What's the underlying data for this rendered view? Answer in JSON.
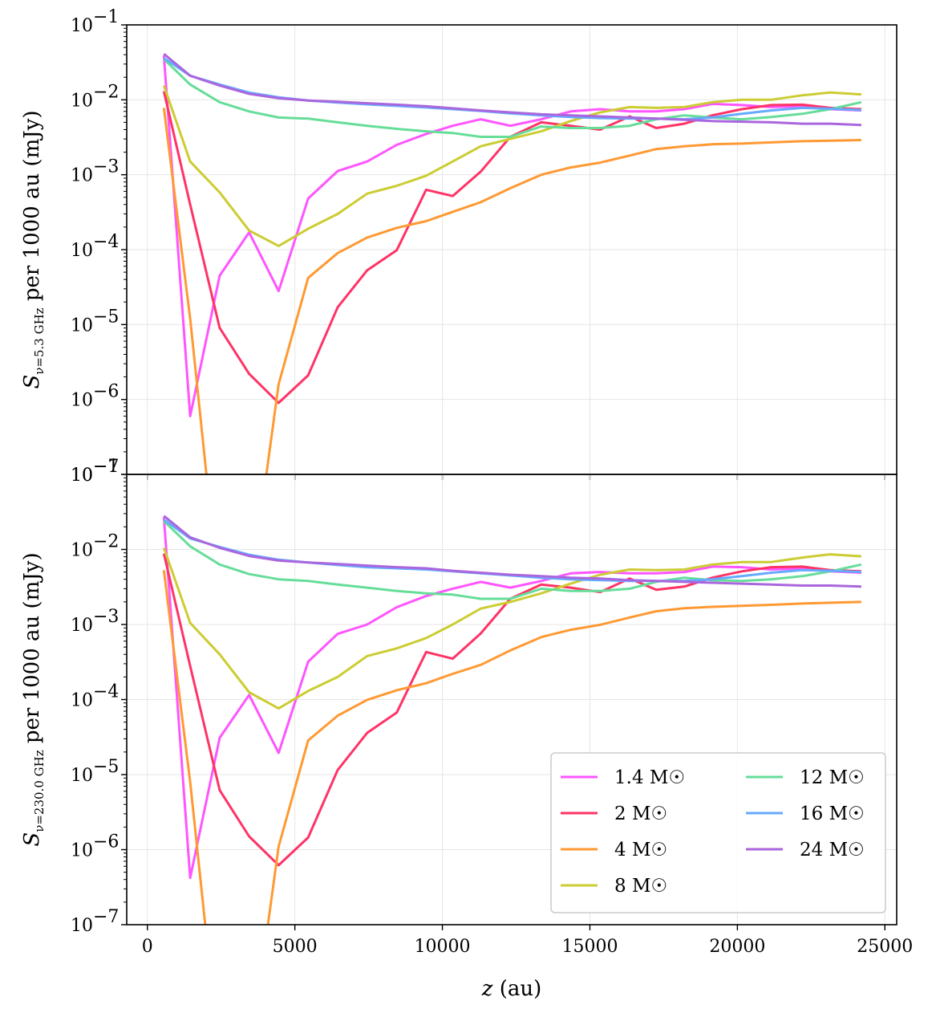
{
  "chart_data": [
    {
      "type": "line",
      "panel": "top",
      "ylabel_main": "S",
      "ylabel_sub": "ν=5.3 GHz",
      "ylabel_rest": " per 1000 au (mJy)",
      "yscale": "log",
      "ylim": [
        1e-07,
        0.1
      ],
      "xlim": [
        -700,
        25400
      ],
      "grid": true,
      "series": [
        {
          "name": "1.4 M☉",
          "color": "#ff55ff",
          "x": [
            560,
            1450,
            2450,
            3450,
            4450,
            5450,
            6450,
            7450,
            8450,
            9450,
            10350,
            11300,
            12300,
            13350,
            14350,
            15350,
            16350,
            17250,
            18200,
            19150,
            20150,
            21150,
            22200,
            23150,
            24200
          ],
          "y": [
            0.039,
            6e-07,
            4.5e-05,
            0.00017,
            2.8e-05,
            0.00048,
            0.00112,
            0.0015,
            0.0025,
            0.0035,
            0.0045,
            0.0055,
            0.0045,
            0.0055,
            0.007,
            0.0075,
            0.007,
            0.007,
            0.0075,
            0.0088,
            0.0085,
            0.008,
            0.0082,
            0.0075,
            0.0072
          ]
        },
        {
          "name": "2 M☉",
          "color": "#ff3366",
          "x": [
            560,
            1450,
            2450,
            3450,
            4450,
            5450,
            6450,
            7450,
            8450,
            9450,
            10350,
            11300,
            12300,
            13350,
            14350,
            15350,
            16350,
            17250,
            18200,
            19150,
            20150,
            21150,
            22200,
            23150,
            24200
          ],
          "y": [
            0.013,
            0.0004,
            9e-06,
            2.2e-06,
            9e-07,
            2.1e-06,
            1.7e-05,
            5.3e-05,
            9.8e-05,
            0.00063,
            0.00052,
            0.0011,
            0.0032,
            0.005,
            0.0045,
            0.004,
            0.006,
            0.0042,
            0.0048,
            0.0062,
            0.0075,
            0.0085,
            0.0086,
            0.0078,
            0.0075
          ]
        },
        {
          "name": "4 M☉",
          "color": "#ff9933",
          "x": [
            560,
            1450,
            2450,
            3450,
            4450,
            5450,
            6450,
            7450,
            8450,
            9450,
            10350,
            11300,
            12300,
            13350,
            14350,
            15350,
            16350,
            17250,
            18200,
            19150,
            20150,
            21150,
            22200,
            23150,
            24200
          ],
          "y": [
            0.0078,
            1.2e-05,
            2e-09,
            2e-09,
            1.6e-06,
            4.2e-05,
            9e-05,
            0.000145,
            0.000195,
            0.00024,
            0.00032,
            0.00043,
            0.00066,
            0.001,
            0.00125,
            0.00145,
            0.0018,
            0.0022,
            0.0024,
            0.00255,
            0.0026,
            0.0027,
            0.0028,
            0.00285,
            0.0029
          ]
        },
        {
          "name": "8 M☉",
          "color": "#cccc33",
          "x": [
            560,
            1450,
            2450,
            3450,
            4450,
            5450,
            6450,
            7450,
            8450,
            9450,
            10350,
            11300,
            12300,
            13350,
            14350,
            15350,
            16350,
            17250,
            18200,
            19150,
            20150,
            21150,
            22200,
            23150,
            24200
          ],
          "y": [
            0.0155,
            0.0015,
            0.00058,
            0.00018,
            0.000112,
            0.00019,
            0.0003,
            0.00056,
            0.00071,
            0.00097,
            0.0015,
            0.0024,
            0.003,
            0.0038,
            0.0052,
            0.0068,
            0.008,
            0.0078,
            0.008,
            0.0093,
            0.01,
            0.01,
            0.0115,
            0.0125,
            0.0118
          ]
        },
        {
          "name": "12 M☉",
          "color": "#66dd99",
          "x": [
            560,
            1450,
            2450,
            3450,
            4450,
            5450,
            6450,
            7450,
            8450,
            9450,
            10350,
            11300,
            12300,
            13350,
            14350,
            15350,
            16350,
            17250,
            18200,
            19150,
            20150,
            21150,
            22200,
            23150,
            24200
          ],
          "y": [
            0.035,
            0.016,
            0.0093,
            0.007,
            0.0058,
            0.0056,
            0.005,
            0.0045,
            0.0041,
            0.0038,
            0.0036,
            0.0032,
            0.0032,
            0.0044,
            0.0042,
            0.0042,
            0.0045,
            0.0055,
            0.0062,
            0.0058,
            0.0055,
            0.0059,
            0.0065,
            0.0075,
            0.0093
          ]
        },
        {
          "name": "16 M☉",
          "color": "#66aaff",
          "x": [
            560,
            1450,
            2450,
            3450,
            4450,
            5450,
            6450,
            7450,
            8450,
            9450,
            10350,
            11300,
            12300,
            13350,
            14350,
            15350,
            16350,
            17250,
            18200,
            19150,
            20150,
            21150,
            22200,
            23150,
            24200
          ],
          "y": [
            0.036,
            0.021,
            0.016,
            0.0125,
            0.0108,
            0.0098,
            0.0092,
            0.0087,
            0.0083,
            0.0079,
            0.0075,
            0.0071,
            0.0066,
            0.0062,
            0.0059,
            0.0057,
            0.0056,
            0.0056,
            0.0055,
            0.0058,
            0.0065,
            0.0072,
            0.0078,
            0.0076,
            0.0073
          ]
        },
        {
          "name": "24 M☉",
          "color": "#aa66dd",
          "x": [
            560,
            1450,
            2450,
            3450,
            4450,
            5450,
            6450,
            7450,
            8450,
            9450,
            10350,
            11300,
            12300,
            13350,
            14350,
            15350,
            16350,
            17250,
            18200,
            19150,
            20150,
            21150,
            22200,
            23150,
            24200
          ],
          "y": [
            0.041,
            0.021,
            0.0155,
            0.012,
            0.0105,
            0.0098,
            0.0094,
            0.009,
            0.0086,
            0.0082,
            0.0077,
            0.0072,
            0.0068,
            0.0064,
            0.0062,
            0.006,
            0.0058,
            0.0056,
            0.0054,
            0.0052,
            0.0051,
            0.005,
            0.0048,
            0.0048,
            0.0046
          ]
        }
      ]
    },
    {
      "type": "line",
      "panel": "bottom",
      "ylabel_main": "S",
      "ylabel_sub": "ν=230.0 GHz",
      "ylabel_rest": " per 1000 au (mJy)",
      "xlabel_var": "z",
      "xlabel_rest": " (au)",
      "yscale": "log",
      "ylim": [
        1e-07,
        0.1
      ],
      "xlim": [
        -700,
        25400
      ],
      "grid": true,
      "legend_position": "lower-right",
      "legend_columns": 2,
      "series": [
        {
          "name": "1.4 M☉",
          "color": "#ff55ff",
          "x": [
            560,
            1450,
            2450,
            3450,
            4450,
            5450,
            6450,
            7450,
            8450,
            9450,
            10350,
            11300,
            12300,
            13350,
            14350,
            15350,
            16350,
            17250,
            18200,
            19150,
            20150,
            21150,
            22200,
            23150,
            24200
          ],
          "y": [
            0.027,
            4.2e-07,
            3.1e-05,
            0.000115,
            1.95e-05,
            0.00032,
            0.00075,
            0.001,
            0.0017,
            0.0024,
            0.003,
            0.0037,
            0.0031,
            0.0038,
            0.0048,
            0.005,
            0.0048,
            0.0048,
            0.005,
            0.0059,
            0.0058,
            0.0054,
            0.0056,
            0.0051,
            0.0049
          ]
        },
        {
          "name": "2 M☉",
          "color": "#ff3366",
          "x": [
            560,
            1450,
            2450,
            3450,
            4450,
            5450,
            6450,
            7450,
            8450,
            9450,
            10350,
            11300,
            12300,
            13350,
            14350,
            15350,
            16350,
            17250,
            18200,
            19150,
            20150,
            21150,
            22200,
            23150,
            24200
          ],
          "y": [
            0.0088,
            0.00028,
            6.2e-06,
            1.5e-06,
            6.2e-07,
            1.45e-06,
            1.15e-05,
            3.6e-05,
            6.7e-05,
            0.00043,
            0.00035,
            0.00076,
            0.0022,
            0.0034,
            0.0031,
            0.0027,
            0.0041,
            0.0029,
            0.0032,
            0.0042,
            0.0051,
            0.0058,
            0.0059,
            0.0053,
            0.0051
          ]
        },
        {
          "name": "4 M☉",
          "color": "#ff9933",
          "x": [
            560,
            1450,
            2450,
            3450,
            4450,
            5450,
            6450,
            7450,
            8450,
            9450,
            10350,
            11300,
            12300,
            13350,
            14350,
            15350,
            16350,
            17250,
            18200,
            19150,
            20150,
            21150,
            22200,
            23150,
            24200
          ],
          "y": [
            0.0053,
            8e-06,
            1.5e-09,
            1.5e-09,
            1.1e-06,
            2.85e-05,
            6.1e-05,
            9.9e-05,
            0.000133,
            0.000165,
            0.00022,
            0.00029,
            0.00045,
            0.00068,
            0.00085,
            0.00099,
            0.00124,
            0.0015,
            0.00165,
            0.00172,
            0.00177,
            0.00183,
            0.0019,
            0.00195,
            0.002
          ]
        },
        {
          "name": "8 M☉",
          "color": "#cccc33",
          "x": [
            560,
            1450,
            2450,
            3450,
            4450,
            5450,
            6450,
            7450,
            8450,
            9450,
            10350,
            11300,
            12300,
            13350,
            14350,
            15350,
            16350,
            17250,
            18200,
            19150,
            20150,
            21150,
            22200,
            23150,
            24200
          ],
          "y": [
            0.0105,
            0.00105,
            0.0004,
            0.000125,
            7.6e-05,
            0.00013,
            0.0002,
            0.00038,
            0.00048,
            0.00066,
            0.001,
            0.00163,
            0.002,
            0.0026,
            0.0035,
            0.0046,
            0.0054,
            0.0053,
            0.0054,
            0.0063,
            0.0068,
            0.0068,
            0.0078,
            0.0086,
            0.0081
          ]
        },
        {
          "name": "12 M☉",
          "color": "#66dd99",
          "x": [
            560,
            1450,
            2450,
            3450,
            4450,
            5450,
            6450,
            7450,
            8450,
            9450,
            10350,
            11300,
            12300,
            13350,
            14350,
            15350,
            16350,
            17250,
            18200,
            19150,
            20150,
            21150,
            22200,
            23150,
            24200
          ],
          "y": [
            0.024,
            0.011,
            0.0063,
            0.0047,
            0.004,
            0.0038,
            0.0034,
            0.0031,
            0.0028,
            0.0026,
            0.0025,
            0.0022,
            0.0022,
            0.003,
            0.0028,
            0.0028,
            0.003,
            0.0037,
            0.0042,
            0.0039,
            0.0038,
            0.004,
            0.0044,
            0.0051,
            0.0063
          ]
        },
        {
          "name": "16 M☉",
          "color": "#66aaff",
          "x": [
            560,
            1450,
            2450,
            3450,
            4450,
            5450,
            6450,
            7450,
            8450,
            9450,
            10350,
            11300,
            12300,
            13350,
            14350,
            15350,
            16350,
            17250,
            18200,
            19150,
            20150,
            21150,
            22200,
            23150,
            24200
          ],
          "y": [
            0.025,
            0.014,
            0.0108,
            0.0085,
            0.0073,
            0.0067,
            0.0062,
            0.0058,
            0.0056,
            0.0054,
            0.0051,
            0.0048,
            0.0045,
            0.0042,
            0.004,
            0.0039,
            0.0038,
            0.0038,
            0.0038,
            0.004,
            0.0044,
            0.0049,
            0.0053,
            0.0052,
            0.005
          ]
        },
        {
          "name": "24 M☉",
          "color": "#aa66dd",
          "x": [
            560,
            1450,
            2450,
            3450,
            4450,
            5450,
            6450,
            7450,
            8450,
            9450,
            10350,
            11300,
            12300,
            13350,
            14350,
            15350,
            16350,
            17250,
            18200,
            19150,
            20150,
            21150,
            22200,
            23150,
            24200
          ],
          "y": [
            0.028,
            0.0145,
            0.0105,
            0.0082,
            0.0071,
            0.0067,
            0.0064,
            0.0061,
            0.0058,
            0.0056,
            0.0052,
            0.0049,
            0.0046,
            0.0044,
            0.0042,
            0.0041,
            0.0039,
            0.0038,
            0.0037,
            0.0036,
            0.0035,
            0.0034,
            0.0033,
            0.0033,
            0.0032
          ]
        }
      ]
    }
  ],
  "x_ticks": [
    0,
    5000,
    10000,
    15000,
    20000,
    25000
  ],
  "y_tick_exponents": [
    -1,
    -2,
    -3,
    -4,
    -5,
    -6,
    -7
  ]
}
